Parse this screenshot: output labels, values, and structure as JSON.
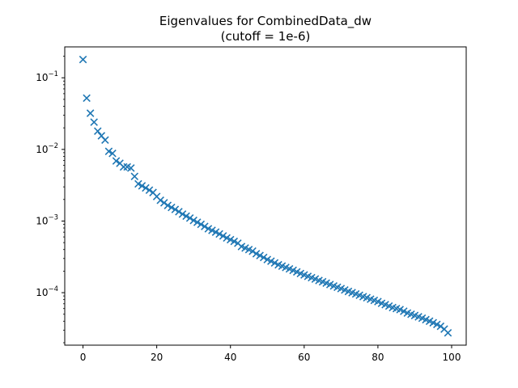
{
  "chart_data": {
    "type": "scatter",
    "title": "Eigenvalues for CombinedData_dw",
    "subtitle": "(cutoff = 1e-6)",
    "xlabel": "",
    "ylabel": "",
    "xlim": [
      -4.95,
      103.95
    ],
    "ylim": [
      1.85e-05,
      0.27
    ],
    "yscale": "log",
    "grid": false,
    "marker": "x",
    "marker_color": "#1f77b4",
    "x_ticks": [
      0,
      20,
      40,
      60,
      80,
      100
    ],
    "x_tick_labels": [
      "0",
      "20",
      "40",
      "60",
      "80",
      "100"
    ],
    "y_ticks": [
      0.1,
      0.01,
      0.001,
      0.0001
    ],
    "y_tick_labels": [
      {
        "base": "10",
        "exp": "−1"
      },
      {
        "base": "10",
        "exp": "−2"
      },
      {
        "base": "10",
        "exp": "−3"
      },
      {
        "base": "10",
        "exp": "−4"
      }
    ],
    "x": [
      0,
      1,
      2,
      3,
      4,
      5,
      6,
      7,
      8,
      9,
      10,
      11,
      12,
      13,
      14,
      15,
      16,
      17,
      18,
      19,
      20,
      21,
      22,
      23,
      24,
      25,
      26,
      27,
      28,
      29,
      30,
      31,
      32,
      33,
      34,
      35,
      36,
      37,
      38,
      39,
      40,
      41,
      42,
      43,
      44,
      45,
      46,
      47,
      48,
      49,
      50,
      51,
      52,
      53,
      54,
      55,
      56,
      57,
      58,
      59,
      60,
      61,
      62,
      63,
      64,
      65,
      66,
      67,
      68,
      69,
      70,
      71,
      72,
      73,
      74,
      75,
      76,
      77,
      78,
      79,
      80,
      81,
      82,
      83,
      84,
      85,
      86,
      87,
      88,
      89,
      90,
      91,
      92,
      93,
      94,
      95,
      96,
      97,
      98,
      99
    ],
    "y": [
      0.18,
      0.052,
      0.032,
      0.024,
      0.018,
      0.0155,
      0.0135,
      0.0094,
      0.0088,
      0.0069,
      0.0064,
      0.0057,
      0.0057,
      0.0055,
      0.0042,
      0.0033,
      0.0031,
      0.0029,
      0.0027,
      0.0025,
      0.0022,
      0.00195,
      0.0018,
      0.00165,
      0.00155,
      0.00145,
      0.00135,
      0.00125,
      0.00117,
      0.0011,
      0.00102,
      0.00096,
      0.0009,
      0.00084,
      0.00078,
      0.00074,
      0.0007,
      0.00066,
      0.00062,
      0.00058,
      0.00055,
      0.00052,
      0.00049,
      0.00044,
      0.00042,
      0.0004,
      0.00038,
      0.00035,
      0.00033,
      0.00031,
      0.00029,
      0.000275,
      0.00026,
      0.000245,
      0.000235,
      0.000225,
      0.000215,
      0.000205,
      0.000195,
      0.000185,
      0.000177,
      0.000169,
      0.000162,
      0.000155,
      0.000148,
      0.000142,
      0.000136,
      0.00013,
      0.000124,
      0.000119,
      0.000114,
      0.000109,
      0.000104,
      0.0001,
      9.6e-05,
      9.2e-05,
      8.8e-05,
      8.5e-05,
      8.1e-05,
      7.8e-05,
      7.5e-05,
      7.1e-05,
      6.8e-05,
      6.5e-05,
      6.2e-05,
      6e-05,
      5.8e-05,
      5.5e-05,
      5.2e-05,
      5e-05,
      4.8e-05,
      4.6e-05,
      4.4e-05,
      4.2e-05,
      4e-05,
      3.8e-05,
      3.6e-05,
      3.4e-05,
      3.1e-05,
      2.75e-05
    ]
  }
}
